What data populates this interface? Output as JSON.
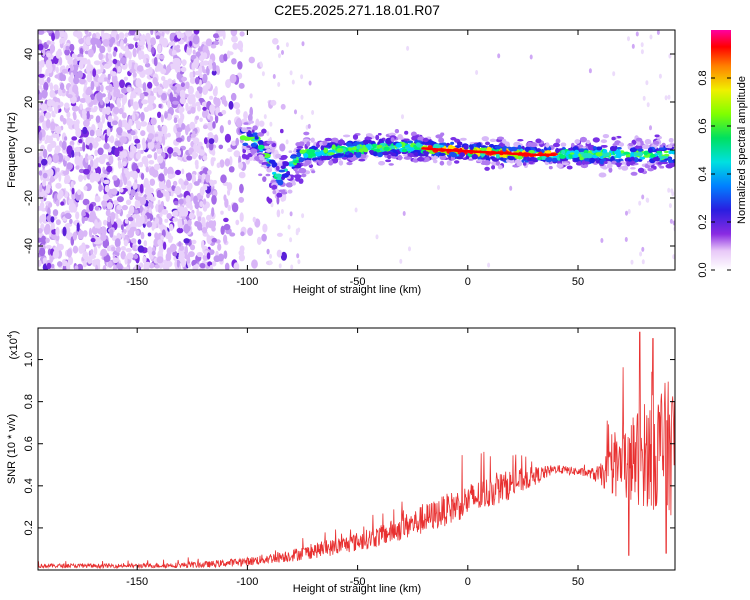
{
  "title": "C2E5.2025.271.18.01.R07",
  "chart_data": [
    {
      "type": "heatmap",
      "name": "spectrogram",
      "xlabel": "Height of straight line (km)",
      "ylabel": "Frequency (Hz)",
      "xlim": [
        -195,
        94
      ],
      "ylim": [
        -50,
        50
      ],
      "xticks": [
        -150,
        -100,
        -50,
        0,
        50
      ],
      "yticks": [
        -40,
        -20,
        0,
        20,
        40
      ],
      "colorbar": {
        "label": "Normalized spectral amplitude",
        "range": [
          0,
          1
        ],
        "ticks": [
          "0.0",
          "0.2",
          "0.4",
          "0.6",
          "0.8"
        ],
        "tick_values": [
          0.0,
          0.2,
          0.4,
          0.6,
          0.8
        ]
      },
      "features": {
        "noise_region_x": [
          -195,
          -95
        ],
        "ridge_points": [
          [
            -100,
            5
          ],
          [
            -95,
            3
          ],
          [
            -90,
            -5
          ],
          [
            -86,
            -12
          ],
          [
            -82,
            -8
          ],
          [
            -75,
            -2
          ],
          [
            -60,
            0
          ],
          [
            -40,
            1
          ],
          [
            -25,
            1
          ],
          [
            -10,
            0
          ],
          [
            10,
            -1
          ],
          [
            30,
            -2
          ],
          [
            50,
            -2
          ],
          [
            65,
            -2
          ],
          [
            75,
            -2
          ],
          [
            90,
            -2
          ]
        ],
        "peak_region_x": [
          -20,
          40
        ]
      }
    },
    {
      "type": "line",
      "name": "snr",
      "xlabel": "Height of straight line (km)",
      "ylabel": "SNR (10 * v/v)",
      "y_multiplier": "(x10",
      "y_multiplier_exp": "4",
      "y_multiplier_close": ")",
      "xlim": [
        -195,
        94
      ],
      "ylim": [
        0,
        1.15
      ],
      "xticks": [
        -150,
        -100,
        -50,
        0,
        50
      ],
      "yticks": [
        0.2,
        0.4,
        0.6,
        0.8,
        1.0
      ],
      "series": [
        {
          "name": "SNR",
          "color": "#e83030",
          "envelope_x": [
            -195,
            -150,
            -120,
            -100,
            -80,
            -60,
            -40,
            -20,
            0,
            20,
            40,
            55,
            60,
            70,
            80,
            90,
            94
          ],
          "envelope_y": [
            0.02,
            0.02,
            0.025,
            0.04,
            0.07,
            0.11,
            0.16,
            0.24,
            0.33,
            0.41,
            0.48,
            0.46,
            0.45,
            0.5,
            0.55,
            0.58,
            0.58
          ],
          "noise_amplitude": [
            0.01,
            0.01,
            0.015,
            0.02,
            0.03,
            0.04,
            0.05,
            0.07,
            0.08,
            0.07,
            0.02,
            0.02,
            0.05,
            0.18,
            0.25,
            0.32,
            0.32
          ],
          "extremes": [
            [
              78,
              1.13
            ],
            [
              84,
              1.1
            ],
            [
              73,
              0.07
            ],
            [
              90,
              0.08
            ]
          ]
        }
      ]
    }
  ]
}
